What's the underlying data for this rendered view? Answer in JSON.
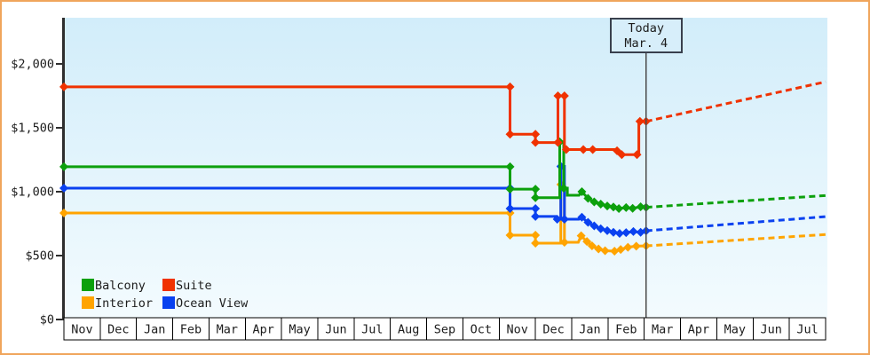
{
  "colors": {
    "frame": "#f0a55c",
    "axis": "#2e2e2e",
    "plot_bg_top": "#d2edfa",
    "plot_bg_bottom": "#f3fbfe",
    "month_box_fill": "#ffffff",
    "month_box_border": "#000000",
    "today_line": "#4a4a4a",
    "today_box_border": "#39404d",
    "today_box_fill": "#d7eefa",
    "text": "#1c1c1c"
  },
  "chart_data": {
    "type": "line",
    "title": "",
    "y_axis": {
      "ticks": [
        {
          "label": "$2,000",
          "value": 2000
        },
        {
          "label": "$1,500",
          "value": 1500
        },
        {
          "label": "$1,000",
          "value": 1000
        },
        {
          "label": "$500",
          "value": 500
        },
        {
          "label": "$0",
          "value": 0
        }
      ],
      "range": [
        0,
        2200
      ]
    },
    "x_axis": {
      "months": [
        "Nov",
        "Dec",
        "Jan",
        "Feb",
        "Mar",
        "Apr",
        "May",
        "Jun",
        "Jul",
        "Aug",
        "Sep",
        "Oct",
        "Nov",
        "Dec",
        "Jan",
        "Feb",
        "Mar",
        "Apr",
        "May",
        "Jun",
        "Jul"
      ],
      "months_span": 21
    },
    "today": {
      "line1": "Today",
      "line2": "Mar. 4",
      "t": 16.05
    },
    "legend": [
      {
        "key": "balcony",
        "label": "Balcony",
        "color": "#0ca00c"
      },
      {
        "key": "suite",
        "label": "Suite",
        "color": "#f03200"
      },
      {
        "key": "interior",
        "label": "Interior",
        "color": "#ffa400"
      },
      {
        "key": "ocean-view",
        "label": "Ocean View",
        "color": "#0a41f0"
      }
    ],
    "series": [
      {
        "key": "interior",
        "name": "Interior",
        "color": "#ffa400",
        "history": [
          [
            0,
            833
          ],
          [
            12.3,
            833
          ],
          [
            12.3,
            660
          ],
          [
            13.0,
            660
          ],
          [
            13.0,
            597
          ],
          [
            13.7,
            597
          ],
          [
            13.7,
            1056
          ],
          [
            13.8,
            1056
          ],
          [
            13.8,
            604
          ],
          [
            14.18,
            604
          ],
          [
            14.26,
            655
          ],
          [
            14.42,
            610
          ],
          [
            14.56,
            576
          ],
          [
            14.74,
            552
          ],
          [
            14.92,
            538
          ],
          [
            15.18,
            535
          ],
          [
            15.35,
            548
          ],
          [
            15.55,
            565
          ],
          [
            15.78,
            574
          ],
          [
            16.05,
            576
          ]
        ],
        "markers": [
          [
            0,
            833
          ],
          [
            12.3,
            833
          ],
          [
            12.3,
            660
          ],
          [
            13.0,
            660
          ],
          [
            13.0,
            597
          ],
          [
            13.7,
            1056
          ],
          [
            13.8,
            604
          ],
          [
            14.26,
            655
          ],
          [
            14.42,
            610
          ],
          [
            14.56,
            576
          ],
          [
            14.74,
            552
          ],
          [
            14.92,
            538
          ],
          [
            15.18,
            535
          ],
          [
            15.35,
            548
          ],
          [
            15.55,
            565
          ],
          [
            15.78,
            574
          ],
          [
            16.05,
            576
          ]
        ],
        "forecast": [
          [
            16.05,
            576
          ],
          [
            21,
            665
          ]
        ]
      },
      {
        "key": "ocean-view",
        "name": "Ocean View",
        "color": "#0a41f0",
        "history": [
          [
            0,
            1028
          ],
          [
            12.3,
            1028
          ],
          [
            12.3,
            868
          ],
          [
            13.0,
            868
          ],
          [
            13.0,
            806
          ],
          [
            13.55,
            806
          ],
          [
            13.55,
            785
          ],
          [
            13.7,
            785
          ],
          [
            13.7,
            1198
          ],
          [
            13.8,
            1198
          ],
          [
            13.8,
            785
          ],
          [
            14.2,
            785
          ],
          [
            14.28,
            800
          ],
          [
            14.45,
            760
          ],
          [
            14.62,
            733
          ],
          [
            14.8,
            710
          ],
          [
            14.98,
            695
          ],
          [
            15.15,
            682
          ],
          [
            15.32,
            674
          ],
          [
            15.5,
            680
          ],
          [
            15.7,
            688
          ],
          [
            15.9,
            682
          ],
          [
            16.05,
            694
          ]
        ],
        "markers": [
          [
            0,
            1028
          ],
          [
            12.3,
            1028
          ],
          [
            12.3,
            868
          ],
          [
            13.0,
            868
          ],
          [
            13.0,
            806
          ],
          [
            13.6,
            785
          ],
          [
            13.7,
            1198
          ],
          [
            13.8,
            785
          ],
          [
            14.28,
            800
          ],
          [
            14.45,
            760
          ],
          [
            14.62,
            733
          ],
          [
            14.8,
            710
          ],
          [
            14.98,
            695
          ],
          [
            15.15,
            682
          ],
          [
            15.32,
            674
          ],
          [
            15.5,
            680
          ],
          [
            15.7,
            688
          ],
          [
            15.9,
            682
          ],
          [
            16.05,
            694
          ]
        ],
        "forecast": [
          [
            16.05,
            694
          ],
          [
            21,
            805
          ]
        ]
      },
      {
        "key": "balcony",
        "name": "Balcony",
        "color": "#0ca00c",
        "history": [
          [
            0,
            1195
          ],
          [
            12.3,
            1195
          ],
          [
            12.3,
            1020
          ],
          [
            13.0,
            1020
          ],
          [
            13.0,
            953
          ],
          [
            13.67,
            953
          ],
          [
            13.67,
            1390
          ],
          [
            13.78,
            1390
          ],
          [
            13.78,
            1028
          ],
          [
            13.88,
            1028
          ],
          [
            13.88,
            972
          ],
          [
            14.2,
            972
          ],
          [
            14.28,
            1000
          ],
          [
            14.45,
            948
          ],
          [
            14.62,
            920
          ],
          [
            14.8,
            903
          ],
          [
            14.98,
            888
          ],
          [
            15.15,
            880
          ],
          [
            15.3,
            868
          ],
          [
            15.5,
            876
          ],
          [
            15.68,
            870
          ],
          [
            15.9,
            882
          ],
          [
            16.05,
            878
          ]
        ],
        "markers": [
          [
            0,
            1195
          ],
          [
            12.3,
            1195
          ],
          [
            12.3,
            1020
          ],
          [
            13.0,
            1020
          ],
          [
            13.0,
            953
          ],
          [
            13.67,
            1390
          ],
          [
            13.78,
            1028
          ],
          [
            14.28,
            1000
          ],
          [
            14.45,
            948
          ],
          [
            14.62,
            920
          ],
          [
            14.8,
            903
          ],
          [
            14.98,
            888
          ],
          [
            15.15,
            880
          ],
          [
            15.3,
            868
          ],
          [
            15.5,
            876
          ],
          [
            15.68,
            870
          ],
          [
            15.9,
            882
          ],
          [
            16.05,
            878
          ]
        ],
        "forecast": [
          [
            16.05,
            878
          ],
          [
            21,
            970
          ]
        ]
      },
      {
        "key": "suite",
        "name": "Suite",
        "color": "#f03200",
        "history": [
          [
            0,
            1820
          ],
          [
            12.3,
            1820
          ],
          [
            12.3,
            1450
          ],
          [
            13.0,
            1450
          ],
          [
            13.0,
            1385
          ],
          [
            13.62,
            1385
          ],
          [
            13.62,
            1750
          ],
          [
            13.8,
            1750
          ],
          [
            13.8,
            1330
          ],
          [
            15.22,
            1330
          ],
          [
            15.32,
            1290
          ],
          [
            15.85,
            1290
          ],
          [
            15.85,
            1550
          ],
          [
            16.05,
            1550
          ]
        ],
        "markers": [
          [
            0,
            1820
          ],
          [
            12.3,
            1820
          ],
          [
            12.3,
            1450
          ],
          [
            13.0,
            1450
          ],
          [
            13.0,
            1385
          ],
          [
            13.62,
            1385
          ],
          [
            13.62,
            1750
          ],
          [
            13.8,
            1750
          ],
          [
            13.85,
            1330
          ],
          [
            14.32,
            1330
          ],
          [
            14.58,
            1330
          ],
          [
            15.25,
            1320
          ],
          [
            15.38,
            1290
          ],
          [
            15.8,
            1290
          ],
          [
            15.88,
            1550
          ],
          [
            16.05,
            1550
          ]
        ],
        "forecast": [
          [
            16.05,
            1550
          ],
          [
            21,
            1860
          ]
        ]
      }
    ]
  }
}
